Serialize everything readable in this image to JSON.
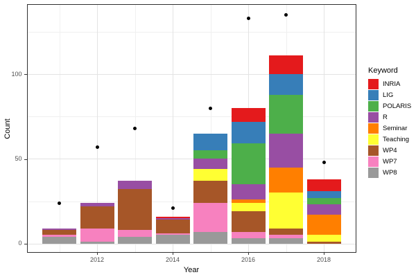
{
  "chart_data": {
    "type": "bar",
    "stacked": true,
    "stack_order": "first series on top",
    "title": "",
    "xlabel": "Year",
    "ylabel": "Count",
    "legend_title": "Keyword",
    "legend_position": "right",
    "grid": true,
    "categories": [
      2011,
      2012,
      2013,
      2014,
      2015,
      2016,
      2017,
      2018
    ],
    "x_ticks": [
      "2012",
      "2014",
      "2016",
      "2018"
    ],
    "x_tick_years": [
      2012,
      2014,
      2016,
      2018
    ],
    "x_minor_years": [
      2011,
      2013,
      2015,
      2017
    ],
    "y_ticks": [
      "0",
      "50",
      "100"
    ],
    "y_tick_values": [
      0,
      50,
      100
    ],
    "y_minor_values": [
      25,
      75,
      125
    ],
    "ylim": [
      0,
      141
    ],
    "series": [
      {
        "name": "INRIA",
        "color": "#E41A1C",
        "values": [
          0,
          0,
          0,
          1,
          0,
          8,
          11,
          7
        ]
      },
      {
        "name": "LIG",
        "color": "#377EB8",
        "values": [
          0,
          0,
          0,
          0,
          10,
          13,
          12,
          4
        ]
      },
      {
        "name": "POLARIS",
        "color": "#4DAF4A",
        "values": [
          0,
          0,
          0,
          0,
          5,
          24,
          23,
          4
        ]
      },
      {
        "name": "R",
        "color": "#984EA3",
        "values": [
          1,
          2,
          5,
          1,
          6,
          9,
          20,
          6
        ]
      },
      {
        "name": "Seminar",
        "color": "#FF7F00",
        "values": [
          0,
          0,
          0,
          0,
          0,
          2,
          15,
          12
        ]
      },
      {
        "name": "Teaching",
        "color": "#FFFF33",
        "values": [
          0,
          0,
          0,
          0,
          7,
          5,
          21,
          4
        ]
      },
      {
        "name": "WP4",
        "color": "#A65628",
        "values": [
          3,
          13,
          24,
          8,
          13,
          12,
          4,
          1
        ]
      },
      {
        "name": "WP7",
        "color": "#F781BF",
        "values": [
          1,
          8,
          4,
          1,
          17,
          4,
          2,
          0
        ]
      },
      {
        "name": "WP8",
        "color": "#999999",
        "values": [
          4,
          1,
          4,
          5,
          7,
          3,
          3,
          0
        ]
      }
    ],
    "points": {
      "shape": "filled-circle",
      "color": "#000000",
      "values": [
        24,
        57,
        68,
        21,
        80,
        133,
        135,
        48
      ]
    },
    "style": {
      "panel_border_color": "#2f2f2f",
      "major_grid_color": "#e3e3e3",
      "minor_grid_color": "#f0f0f0",
      "tick_label_color": "#4d4d4d"
    }
  }
}
